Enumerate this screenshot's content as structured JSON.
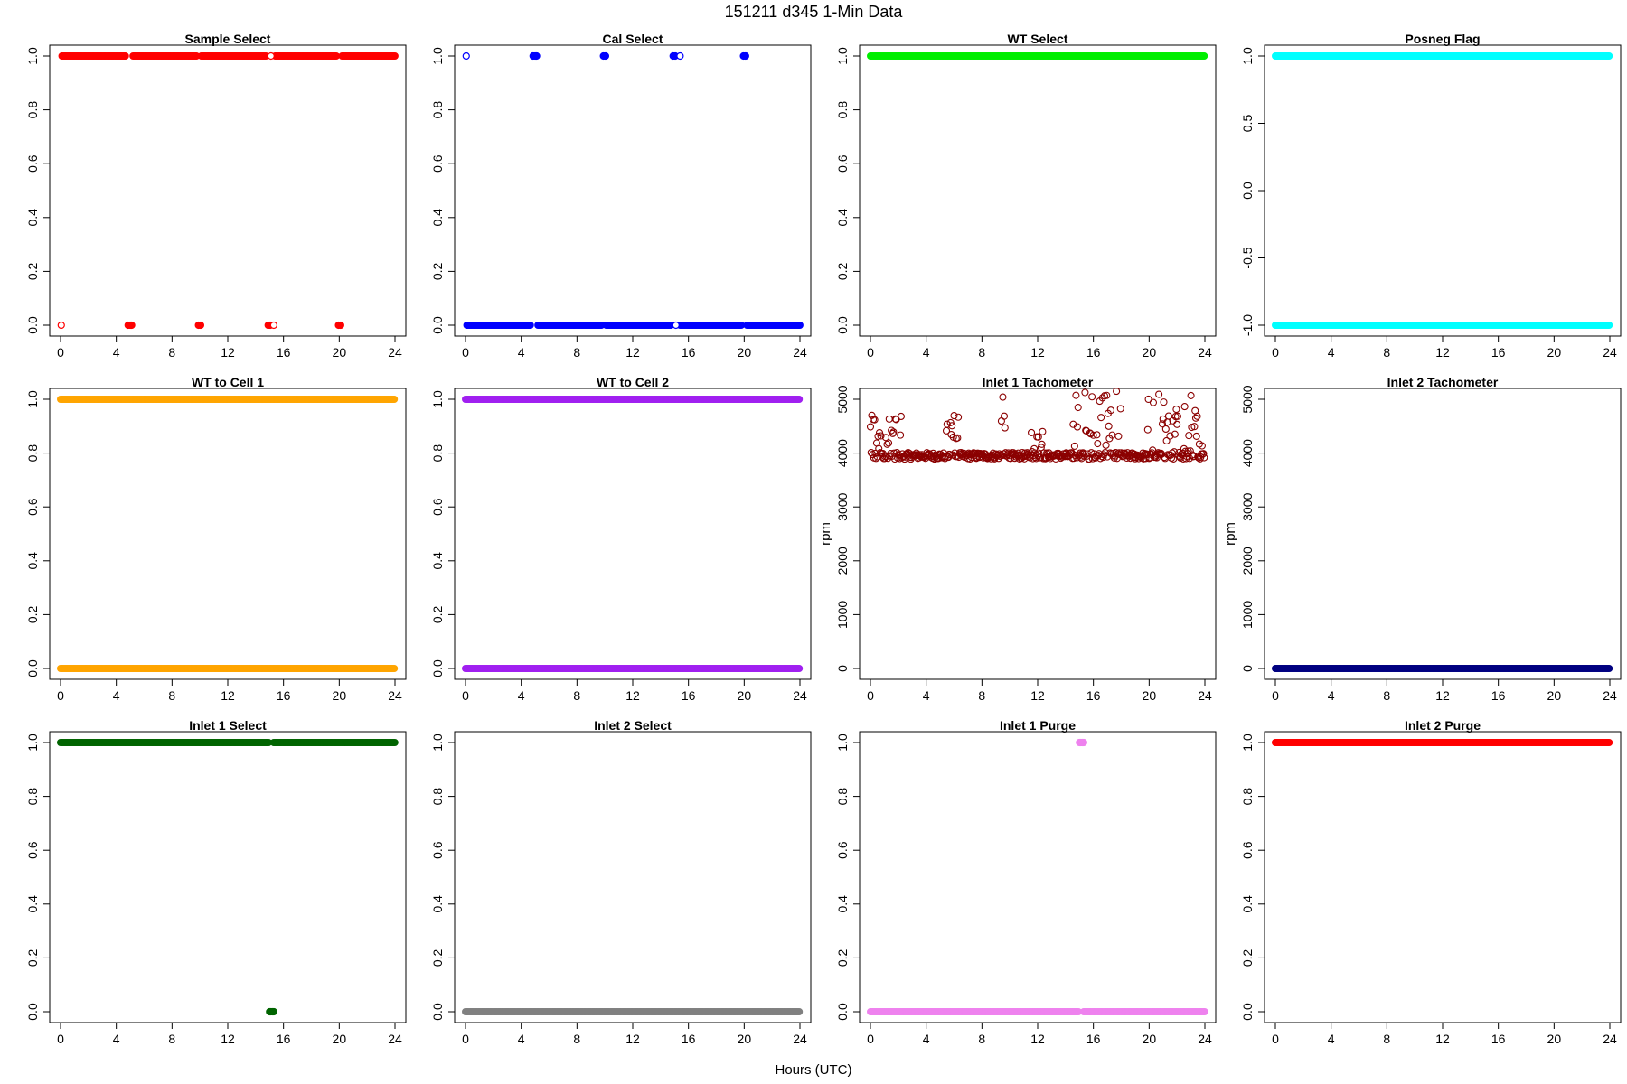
{
  "figure": {
    "title": "151211   d345   1-Min Data",
    "xlabel": "Hours (UTC)"
  },
  "chart_data": [
    {
      "type": "scatter",
      "title": "Sample Select",
      "ylabel": "",
      "xlim": [
        0,
        24
      ],
      "ylim": [
        0,
        1
      ],
      "xticks": [
        0,
        4,
        8,
        12,
        16,
        20,
        24
      ],
      "yticks": [
        0.0,
        0.2,
        0.4,
        0.6,
        0.8,
        1.0
      ],
      "yticklabels": [
        "0.0",
        "0.2",
        "0.4",
        "0.6",
        "0.8",
        "1.0"
      ],
      "color": "#ff0000",
      "filled": true,
      "runs": [
        {
          "y": 1,
          "x": [
            0.1,
            4.7
          ]
        },
        {
          "y": 1,
          "x": [
            5.2,
            9.8
          ]
        },
        {
          "y": 1,
          "x": [
            10.1,
            14.8
          ]
        },
        {
          "y": 1,
          "x": [
            15.4,
            19.8
          ]
        },
        {
          "y": 1,
          "x": [
            20.2,
            24.0
          ]
        }
      ],
      "points": [
        {
          "x": 0.05,
          "y": 0,
          "open": true
        },
        {
          "x": 4.85,
          "y": 0
        },
        {
          "x": 5.0,
          "y": 0
        },
        {
          "x": 5.1,
          "y": 0
        },
        {
          "x": 9.9,
          "y": 0
        },
        {
          "x": 10.05,
          "y": 0
        },
        {
          "x": 14.9,
          "y": 0
        },
        {
          "x": 15.05,
          "y": 0
        },
        {
          "x": 15.3,
          "y": 0,
          "open": true
        },
        {
          "x": 19.95,
          "y": 0
        },
        {
          "x": 20.1,
          "y": 0
        },
        {
          "x": 15.1,
          "y": 1,
          "open": true
        }
      ]
    },
    {
      "type": "scatter",
      "title": "Cal Select",
      "ylabel": "",
      "xlim": [
        0,
        24
      ],
      "ylim": [
        0,
        1
      ],
      "xticks": [
        0,
        4,
        8,
        12,
        16,
        20,
        24
      ],
      "yticks": [
        0.0,
        0.2,
        0.4,
        0.6,
        0.8,
        1.0
      ],
      "yticklabels": [
        "0.0",
        "0.2",
        "0.4",
        "0.6",
        "0.8",
        "1.0"
      ],
      "color": "#0000ff",
      "filled": true,
      "runs": [
        {
          "y": 0,
          "x": [
            0.1,
            4.7
          ]
        },
        {
          "y": 0,
          "x": [
            5.2,
            9.8
          ]
        },
        {
          "y": 0,
          "x": [
            10.1,
            14.8
          ]
        },
        {
          "y": 0,
          "x": [
            15.4,
            19.8
          ]
        },
        {
          "y": 0,
          "x": [
            20.2,
            24.0
          ]
        }
      ],
      "points": [
        {
          "x": 0.05,
          "y": 1,
          "open": true
        },
        {
          "x": 4.85,
          "y": 1
        },
        {
          "x": 5.0,
          "y": 1
        },
        {
          "x": 5.1,
          "y": 1
        },
        {
          "x": 9.9,
          "y": 1
        },
        {
          "x": 10.05,
          "y": 1
        },
        {
          "x": 14.9,
          "y": 1
        },
        {
          "x": 15.05,
          "y": 1
        },
        {
          "x": 15.4,
          "y": 1,
          "open": true
        },
        {
          "x": 19.95,
          "y": 1
        },
        {
          "x": 20.1,
          "y": 1
        },
        {
          "x": 15.1,
          "y": 0,
          "open": true
        }
      ]
    },
    {
      "type": "scatter",
      "title": "WT Select",
      "ylabel": "",
      "xlim": [
        0,
        24
      ],
      "ylim": [
        0,
        1
      ],
      "xticks": [
        0,
        4,
        8,
        12,
        16,
        20,
        24
      ],
      "yticks": [
        0.0,
        0.2,
        0.4,
        0.6,
        0.8,
        1.0
      ],
      "yticklabels": [
        "0.0",
        "0.2",
        "0.4",
        "0.6",
        "0.8",
        "1.0"
      ],
      "color": "#00ee00",
      "filled": true,
      "runs": [
        {
          "y": 1,
          "x": [
            0.0,
            24.0
          ]
        }
      ],
      "points": []
    },
    {
      "type": "scatter",
      "title": "Posneg Flag",
      "ylabel": "",
      "xlim": [
        0,
        24
      ],
      "ylim": [
        -1,
        1
      ],
      "xticks": [
        0,
        4,
        8,
        12,
        16,
        20,
        24
      ],
      "yticks": [
        -1.0,
        -0.5,
        0.0,
        0.5,
        1.0
      ],
      "yticklabels": [
        "-1.0",
        "-0.5",
        "0.0",
        "0.5",
        "1.0"
      ],
      "color": "#00ffff",
      "filled": true,
      "runs": [
        {
          "y": 1,
          "x": [
            0.0,
            24.0
          ]
        },
        {
          "y": -1,
          "x": [
            0.0,
            24.0
          ]
        }
      ],
      "points": []
    },
    {
      "type": "scatter",
      "title": "WT to Cell 1",
      "ylabel": "",
      "xlim": [
        0,
        24
      ],
      "ylim": [
        0,
        1
      ],
      "xticks": [
        0,
        4,
        8,
        12,
        16,
        20,
        24
      ],
      "yticks": [
        0.0,
        0.2,
        0.4,
        0.6,
        0.8,
        1.0
      ],
      "yticklabels": [
        "0.0",
        "0.2",
        "0.4",
        "0.6",
        "0.8",
        "1.0"
      ],
      "color": "#ffa500",
      "filled": true,
      "runs": [
        {
          "y": 1,
          "x": [
            0.0,
            24.0
          ]
        },
        {
          "y": 0,
          "x": [
            0.0,
            24.0
          ]
        }
      ],
      "points": []
    },
    {
      "type": "scatter",
      "title": "WT to Cell 2",
      "ylabel": "",
      "xlim": [
        0,
        24
      ],
      "ylim": [
        0,
        1
      ],
      "xticks": [
        0,
        4,
        8,
        12,
        16,
        20,
        24
      ],
      "yticks": [
        0.0,
        0.2,
        0.4,
        0.6,
        0.8,
        1.0
      ],
      "yticklabels": [
        "0.0",
        "0.2",
        "0.4",
        "0.6",
        "0.8",
        "1.0"
      ],
      "color": "#a020f0",
      "filled": true,
      "runs": [
        {
          "y": 1,
          "x": [
            0.0,
            24.0
          ]
        },
        {
          "y": 0,
          "x": [
            0.0,
            24.0
          ]
        }
      ],
      "points": []
    },
    {
      "type": "scatter",
      "title": "Inlet 1 Tachometer",
      "ylabel": "rpm",
      "xlim": [
        0,
        24
      ],
      "ylim": [
        0,
        5000
      ],
      "xticks": [
        0,
        4,
        8,
        12,
        16,
        20,
        24
      ],
      "yticks": [
        0,
        1000,
        2000,
        3000,
        4000,
        5000
      ],
      "yticklabels": [
        "0",
        "1000",
        "2000",
        "3000",
        "4000",
        "5000"
      ],
      "color": "#8b0000",
      "filled": false,
      "runs": [],
      "noise": {
        "x_start": 0.0,
        "x_end": 24.0,
        "step_hours": 0.05,
        "base_rpm": 3950,
        "jitter_rpm": 60,
        "spikes": [
          {
            "x0": 0.0,
            "x1": 2.2,
            "max_rpm": 4800
          },
          {
            "x0": 5.3,
            "x1": 6.3,
            "max_rpm": 4750
          },
          {
            "x0": 9.3,
            "x1": 10.3,
            "max_rpm": 5050
          },
          {
            "x0": 11.5,
            "x1": 12.5,
            "max_rpm": 4450
          },
          {
            "x0": 14.5,
            "x1": 18.0,
            "max_rpm": 5200
          },
          {
            "x0": 19.8,
            "x1": 24.0,
            "max_rpm": 5200
          }
        ]
      },
      "points": []
    },
    {
      "type": "scatter",
      "title": "Inlet 2 Tachometer",
      "ylabel": "rpm",
      "xlim": [
        0,
        24
      ],
      "ylim": [
        0,
        5000
      ],
      "xticks": [
        0,
        4,
        8,
        12,
        16,
        20,
        24
      ],
      "yticks": [
        0,
        1000,
        2000,
        3000,
        4000,
        5000
      ],
      "yticklabels": [
        "0",
        "1000",
        "2000",
        "3000",
        "4000",
        "5000"
      ],
      "color": "#000080",
      "filled": true,
      "runs": [
        {
          "y": 0,
          "x": [
            0.0,
            24.0
          ]
        }
      ],
      "points": []
    },
    {
      "type": "scatter",
      "title": "Inlet 1 Select",
      "ylabel": "",
      "xlim": [
        0,
        24
      ],
      "ylim": [
        0,
        1
      ],
      "xticks": [
        0,
        4,
        8,
        12,
        16,
        20,
        24
      ],
      "yticks": [
        0.0,
        0.2,
        0.4,
        0.6,
        0.8,
        1.0
      ],
      "yticklabels": [
        "0.0",
        "0.2",
        "0.4",
        "0.6",
        "0.8",
        "1.0"
      ],
      "color": "#006400",
      "filled": true,
      "runs": [
        {
          "y": 1,
          "x": [
            0.0,
            15.0
          ]
        },
        {
          "y": 1,
          "x": [
            15.3,
            24.0
          ]
        }
      ],
      "points": [
        {
          "x": 15.0,
          "y": 0
        },
        {
          "x": 15.1,
          "y": 0
        },
        {
          "x": 15.2,
          "y": 0
        },
        {
          "x": 15.3,
          "y": 0
        }
      ]
    },
    {
      "type": "scatter",
      "title": "Inlet 2 Select",
      "ylabel": "",
      "xlim": [
        0,
        24
      ],
      "ylim": [
        0,
        1
      ],
      "xticks": [
        0,
        4,
        8,
        12,
        16,
        20,
        24
      ],
      "yticks": [
        0.0,
        0.2,
        0.4,
        0.6,
        0.8,
        1.0
      ],
      "yticklabels": [
        "0.0",
        "0.2",
        "0.4",
        "0.6",
        "0.8",
        "1.0"
      ],
      "color": "#808080",
      "filled": true,
      "runs": [
        {
          "y": 0,
          "x": [
            0.0,
            24.0
          ]
        }
      ],
      "points": []
    },
    {
      "type": "scatter",
      "title": "Inlet 1 Purge",
      "ylabel": "",
      "xlim": [
        0,
        24
      ],
      "ylim": [
        0,
        1
      ],
      "xticks": [
        0,
        4,
        8,
        12,
        16,
        20,
        24
      ],
      "yticks": [
        0.0,
        0.2,
        0.4,
        0.6,
        0.8,
        1.0
      ],
      "yticklabels": [
        "0.0",
        "0.2",
        "0.4",
        "0.6",
        "0.8",
        "1.0"
      ],
      "color": "#ee82ee",
      "filled": true,
      "runs": [
        {
          "y": 0,
          "x": [
            0.0,
            15.0
          ]
        },
        {
          "y": 0,
          "x": [
            15.3,
            24.0
          ]
        }
      ],
      "points": [
        {
          "x": 15.0,
          "y": 1
        },
        {
          "x": 15.1,
          "y": 1
        },
        {
          "x": 15.2,
          "y": 1
        },
        {
          "x": 15.3,
          "y": 1
        }
      ]
    },
    {
      "type": "scatter",
      "title": "Inlet 2 Purge",
      "ylabel": "",
      "xlim": [
        0,
        24
      ],
      "ylim": [
        0,
        1
      ],
      "xticks": [
        0,
        4,
        8,
        12,
        16,
        20,
        24
      ],
      "yticks": [
        0.0,
        0.2,
        0.4,
        0.6,
        0.8,
        1.0
      ],
      "yticklabels": [
        "0.0",
        "0.2",
        "0.4",
        "0.6",
        "0.8",
        "1.0"
      ],
      "color": "#ff0000",
      "filled": true,
      "runs": [
        {
          "y": 1,
          "x": [
            0.0,
            24.0
          ]
        }
      ],
      "points": []
    }
  ]
}
